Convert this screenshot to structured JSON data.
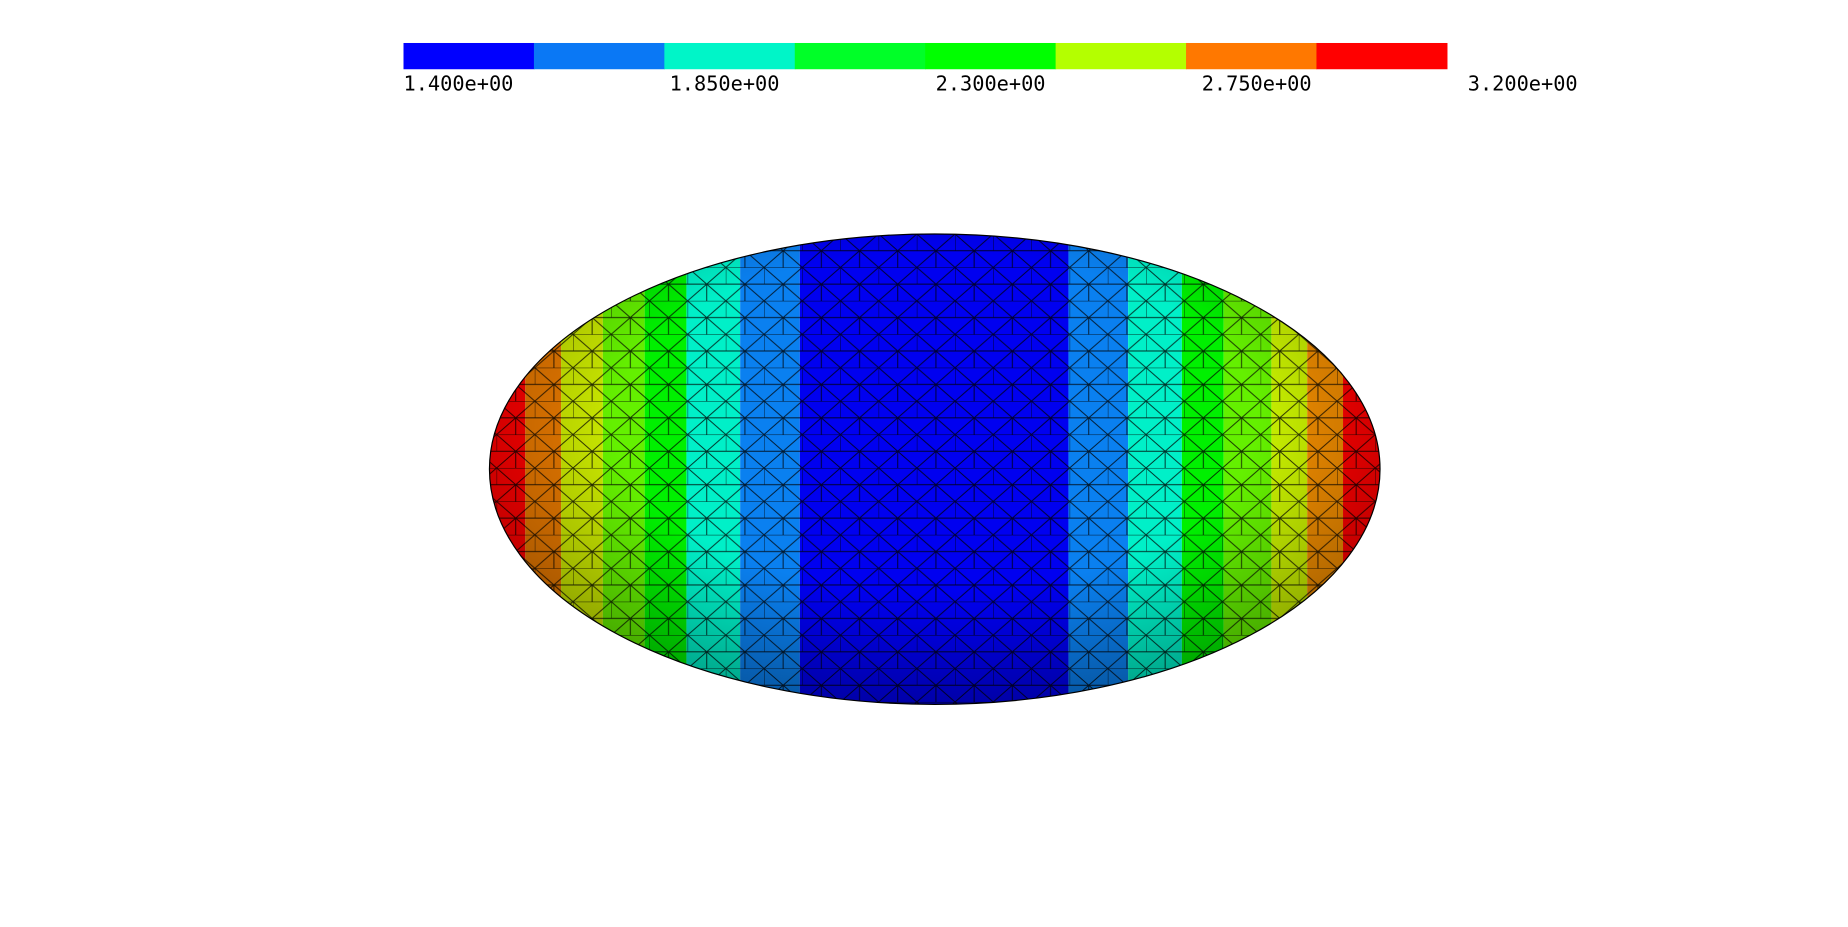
{
  "colorbar": {
    "labels": [
      "1.400e+00",
      "1.850e+00",
      "2.300e+00",
      "2.750e+00",
      "3.200e+00"
    ],
    "colors": [
      "#0000ff",
      "#0a78f5",
      "#00f5c8",
      "#00ff28",
      "#00ff00",
      "#b4ff00",
      "#ff7800",
      "#ff0000"
    ]
  }
}
